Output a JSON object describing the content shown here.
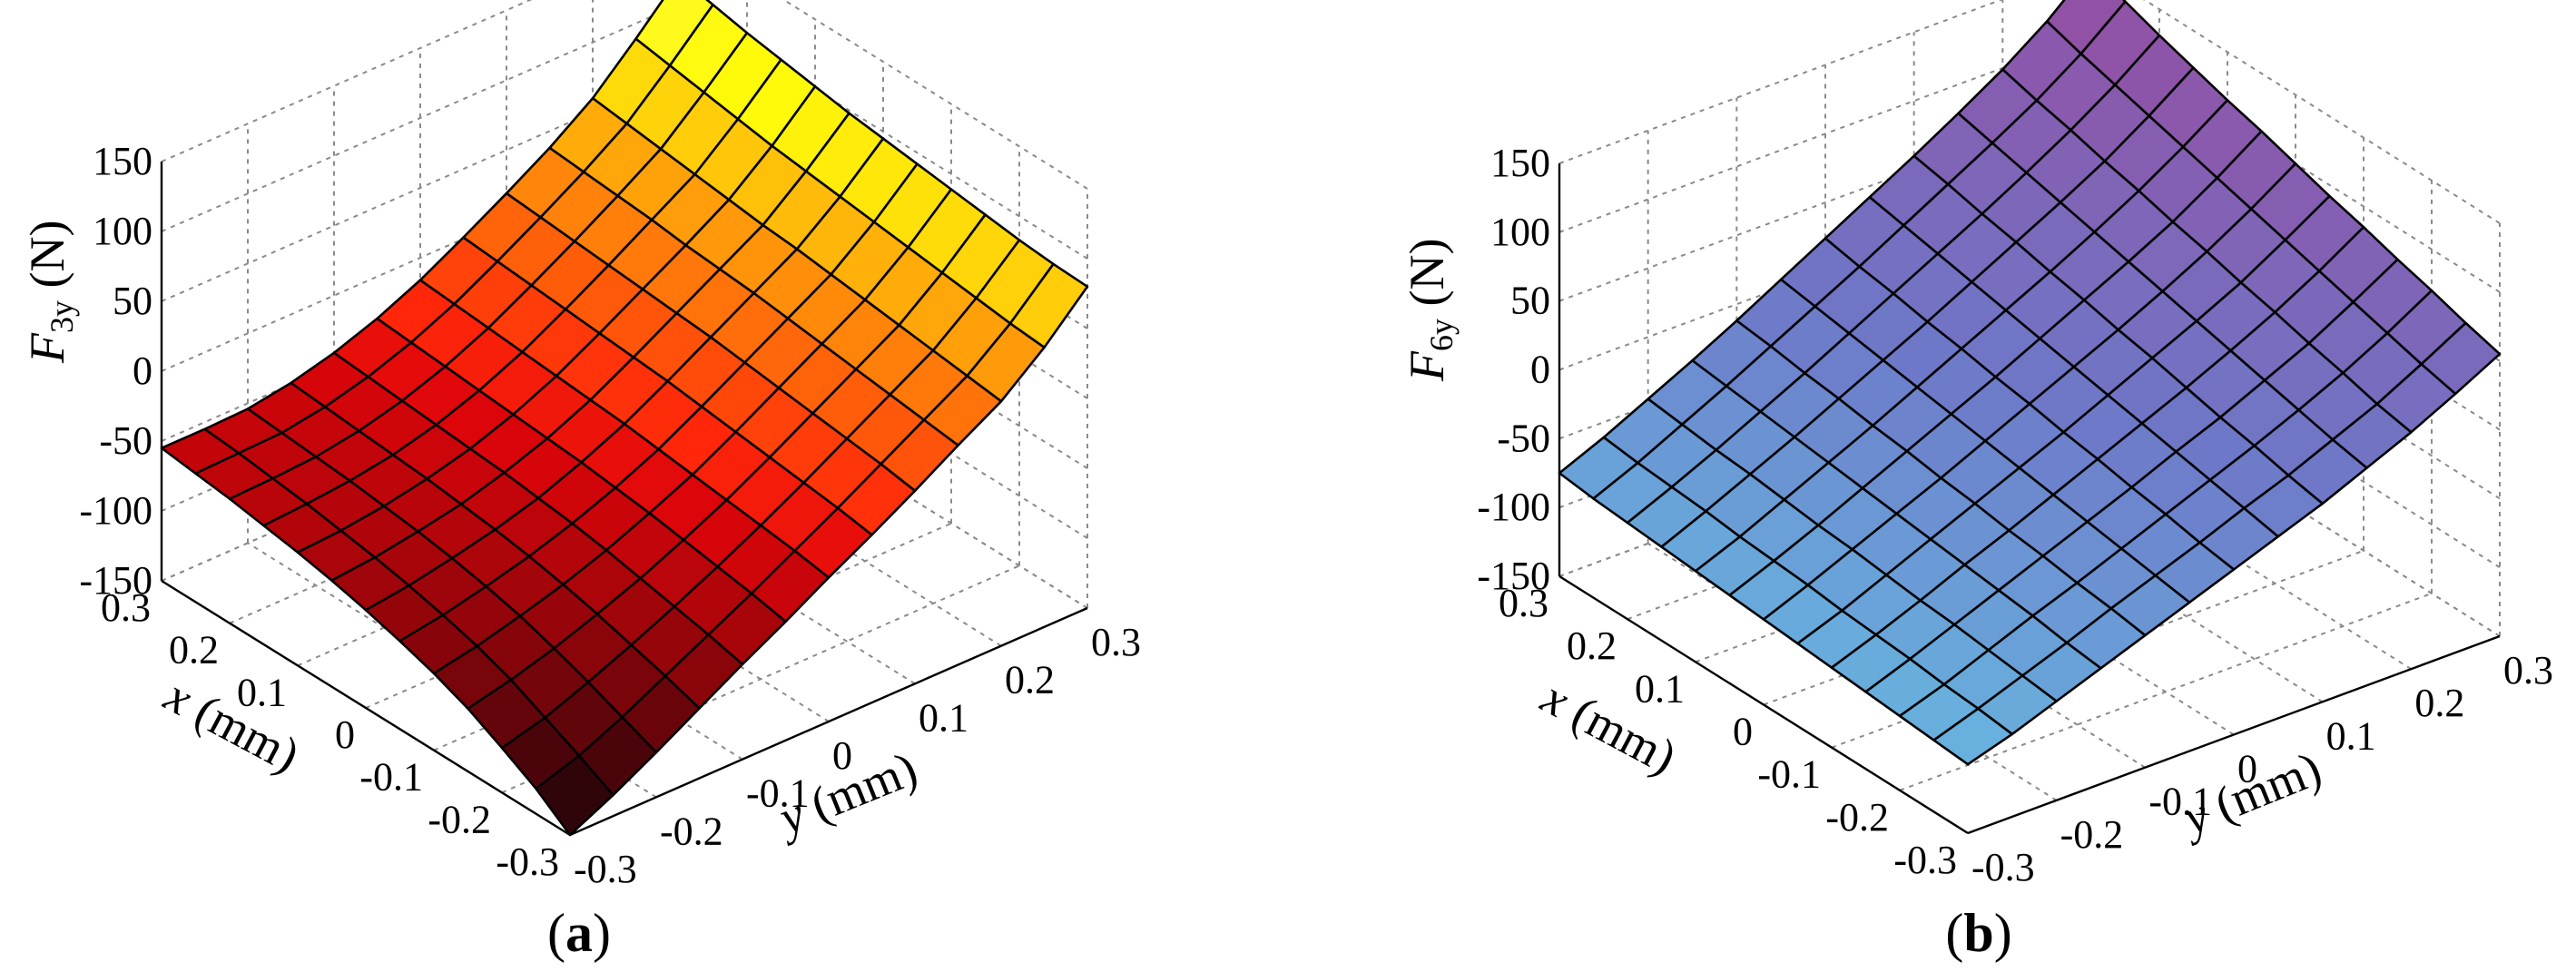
{
  "chart_data": [
    {
      "type": "surface",
      "caption": {
        "open": "(",
        "letter": "a",
        "close": ")"
      },
      "zlabel": {
        "symbol": "F",
        "subscript": "3y",
        "unit": " (N)"
      },
      "xlabel": {
        "symbol": "x",
        "unit": " (mm)"
      },
      "ylabel": {
        "symbol": "y",
        "unit": " (mm)"
      },
      "xlim": [
        -0.3,
        0.3
      ],
      "ylim": [
        -0.3,
        0.3
      ],
      "zlim": [
        -150,
        150
      ],
      "z_ticks": [
        "150",
        "100",
        "50",
        "0",
        "-50",
        "-100",
        "-150"
      ],
      "x_ticks": [
        "0.3",
        "0.2",
        "0.1",
        "0",
        "-0.1",
        "-0.2",
        "-0.3"
      ],
      "y_ticks": [
        "-0.3",
        "-0.2",
        "-0.1",
        "0",
        "0.1",
        "0.2",
        "0.3"
      ],
      "grid": true,
      "colormap": "hot",
      "corners": {
        "x=0.3,y=-0.3": -55,
        "x=-0.3,y=-0.3": -150,
        "x=0.3,y=0.3": 120,
        "x=-0.3,y=0.3": 80
      },
      "surface": {
        "x": [
          -0.3,
          -0.25,
          -0.2,
          -0.15,
          -0.1,
          -0.05,
          0,
          0.05,
          0.1,
          0.15,
          0.2,
          0.25,
          0.3
        ],
        "y": [
          -0.3,
          -0.25,
          -0.2,
          -0.15,
          -0.1,
          -0.05,
          0,
          0.05,
          0.1,
          0.15,
          0.2,
          0.25,
          0.3
        ],
        "z": [
          [
            -150,
            -135,
            -118,
            -100,
            -82,
            -65,
            -47,
            -30,
            -12,
            7,
            25,
            50,
            80
          ],
          [
            -132,
            -122,
            -108,
            -92,
            -76,
            -60,
            -43,
            -26,
            -8,
            10,
            28,
            52,
            81
          ],
          [
            -118,
            -110,
            -98,
            -85,
            -71,
            -56,
            -40,
            -23,
            -5,
            13,
            31,
            55,
            83
          ],
          [
            -105,
            -98,
            -89,
            -78,
            -66,
            -52,
            -37,
            -20,
            -2,
            16,
            34,
            58,
            86
          ],
          [
            -95,
            -89,
            -81,
            -72,
            -61,
            -48,
            -34,
            -17,
            1,
            19,
            37,
            61,
            89
          ],
          [
            -87,
            -82,
            -75,
            -67,
            -57,
            -45,
            -31,
            -14,
            4,
            22,
            40,
            64,
            92
          ],
          [
            -80,
            -76,
            -70,
            -63,
            -54,
            -42,
            -28,
            -11,
            7,
            25,
            43,
            67,
            95
          ],
          [
            -74,
            -71,
            -66,
            -60,
            -51,
            -40,
            -26,
            -9,
            9,
            27,
            45,
            70,
            98
          ],
          [
            -69,
            -67,
            -63,
            -57,
            -49,
            -38,
            -24,
            -7,
            11,
            29,
            48,
            73,
            102
          ],
          [
            -65,
            -63,
            -60,
            -55,
            -47,
            -36,
            -22,
            -5,
            13,
            32,
            51,
            77,
            106
          ],
          [
            -61,
            -60,
            -58,
            -53,
            -45,
            -34,
            -20,
            -3,
            15,
            34,
            54,
            81,
            110
          ],
          [
            -58,
            -57,
            -56,
            -51,
            -43,
            -32,
            -18,
            -1,
            17,
            36,
            57,
            85,
            115
          ],
          [
            -55,
            -55,
            -54,
            -49,
            -41,
            -30,
            -16,
            1,
            19,
            38,
            60,
            89,
            120
          ]
        ]
      }
    },
    {
      "type": "surface",
      "caption": {
        "open": "(",
        "letter": "b",
        "close": ")"
      },
      "zlabel": {
        "symbol": "F",
        "subscript": "6y",
        "unit": " (N)"
      },
      "xlabel": {
        "symbol": "x",
        "unit": " (mm)"
      },
      "ylabel": {
        "symbol": "y",
        "unit": " (mm)"
      },
      "xlim": [
        -0.3,
        0.3
      ],
      "ylim": [
        -0.3,
        0.3
      ],
      "zlim": [
        -150,
        150
      ],
      "z_ticks": [
        "150",
        "100",
        "50",
        "0",
        "-50",
        "-100",
        "-150"
      ],
      "x_ticks": [
        "0.3",
        "0.2",
        "0.1",
        "0",
        "-0.1",
        "-0.2",
        "-0.3"
      ],
      "y_ticks": [
        "-0.3",
        "-0.2",
        "-0.1",
        "0",
        "0.1",
        "0.2",
        "0.3"
      ],
      "grid": true,
      "colormap": "cool",
      "corners": {
        "x=0.3,y=-0.3": -75,
        "x=-0.3,y=-0.3": -100,
        "x=0.3,y=0.3": 150,
        "x=-0.3,y=0.3": 55
      },
      "surface": {
        "x": [
          -0.3,
          -0.25,
          -0.2,
          -0.15,
          -0.1,
          -0.05,
          0,
          0.05,
          0.1,
          0.15,
          0.2,
          0.25,
          0.3
        ],
        "y": [
          -0.3,
          -0.25,
          -0.2,
          -0.15,
          -0.1,
          -0.05,
          0,
          0.05,
          0.1,
          0.15,
          0.2,
          0.25,
          0.3
        ],
        "z": [
          [
            -100,
            -90,
            -78,
            -66,
            -54,
            -42,
            -30,
            -18,
            -6,
            8,
            22,
            38,
            55
          ],
          [
            -98,
            -87,
            -75,
            -63,
            -50,
            -38,
            -26,
            -13,
            -1,
            13,
            27,
            44,
            62
          ],
          [
            -96,
            -85,
            -72,
            -59,
            -47,
            -34,
            -21,
            -8,
            5,
            19,
            34,
            51,
            70
          ],
          [
            -94,
            -82,
            -69,
            -56,
            -43,
            -30,
            -17,
            -3,
            10,
            25,
            40,
            58,
            77
          ],
          [
            -92,
            -80,
            -67,
            -53,
            -40,
            -26,
            -12,
            2,
            16,
            31,
            47,
            65,
            85
          ],
          [
            -90,
            -78,
            -64,
            -50,
            -36,
            -22,
            -8,
            7,
            22,
            37,
            53,
            72,
            92
          ],
          [
            -88,
            -75,
            -61,
            -47,
            -33,
            -18,
            -3,
            12,
            27,
            43,
            60,
            79,
            100
          ],
          [
            -86,
            -73,
            -59,
            -44,
            -29,
            -14,
            1,
            17,
            33,
            49,
            66,
            86,
            108
          ],
          [
            -84,
            -71,
            -56,
            -41,
            -26,
            -10,
            6,
            22,
            38,
            55,
            73,
            93,
            115
          ],
          [
            -82,
            -68,
            -53,
            -38,
            -22,
            -6,
            10,
            27,
            44,
            61,
            79,
            100,
            123
          ],
          [
            -80,
            -66,
            -51,
            -35,
            -19,
            -2,
            15,
            32,
            49,
            67,
            86,
            107,
            131
          ],
          [
            -78,
            -64,
            -48,
            -32,
            -15,
            2,
            19,
            37,
            55,
            73,
            92,
            114,
            140
          ],
          [
            -75,
            -61,
            -45,
            -29,
            -12,
            6,
            24,
            42,
            60,
            79,
            99,
            122,
            150
          ]
        ]
      }
    }
  ]
}
